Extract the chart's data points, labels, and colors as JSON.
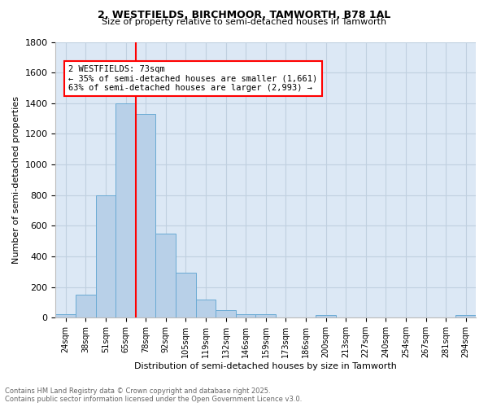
{
  "title1": "2, WESTFIELDS, BIRCHMOOR, TAMWORTH, B78 1AL",
  "title2": "Size of property relative to semi-detached houses in Tamworth",
  "xlabel": "Distribution of semi-detached houses by size in Tamworth",
  "ylabel": "Number of semi-detached properties",
  "footnote1": "Contains HM Land Registry data © Crown copyright and database right 2025.",
  "footnote2": "Contains public sector information licensed under the Open Government Licence v3.0.",
  "bar_labels": [
    "24sqm",
    "38sqm",
    "51sqm",
    "65sqm",
    "78sqm",
    "92sqm",
    "105sqm",
    "119sqm",
    "132sqm",
    "146sqm",
    "159sqm",
    "173sqm",
    "186sqm",
    "200sqm",
    "213sqm",
    "227sqm",
    "240sqm",
    "254sqm",
    "267sqm",
    "281sqm",
    "294sqm"
  ],
  "bar_values": [
    20,
    150,
    800,
    1400,
    1330,
    550,
    295,
    120,
    50,
    25,
    25,
    0,
    0,
    15,
    0,
    0,
    0,
    0,
    0,
    0,
    15
  ],
  "bar_color": "#b8d0e8",
  "bar_edgecolor": "#6aaad4",
  "ylim": [
    0,
    1800
  ],
  "yticks": [
    0,
    200,
    400,
    600,
    800,
    1000,
    1200,
    1400,
    1600,
    1800
  ],
  "property_label": "2 WESTFIELDS: 73sqm",
  "pct_smaller": "35%",
  "pct_larger": "63%",
  "count_smaller": "1,661",
  "count_larger": "2,993",
  "redline_x": 3.5,
  "background_color": "#ffffff",
  "ax_facecolor": "#dce8f5",
  "grid_color": "#c0d0e0",
  "bar_width": 1.0
}
